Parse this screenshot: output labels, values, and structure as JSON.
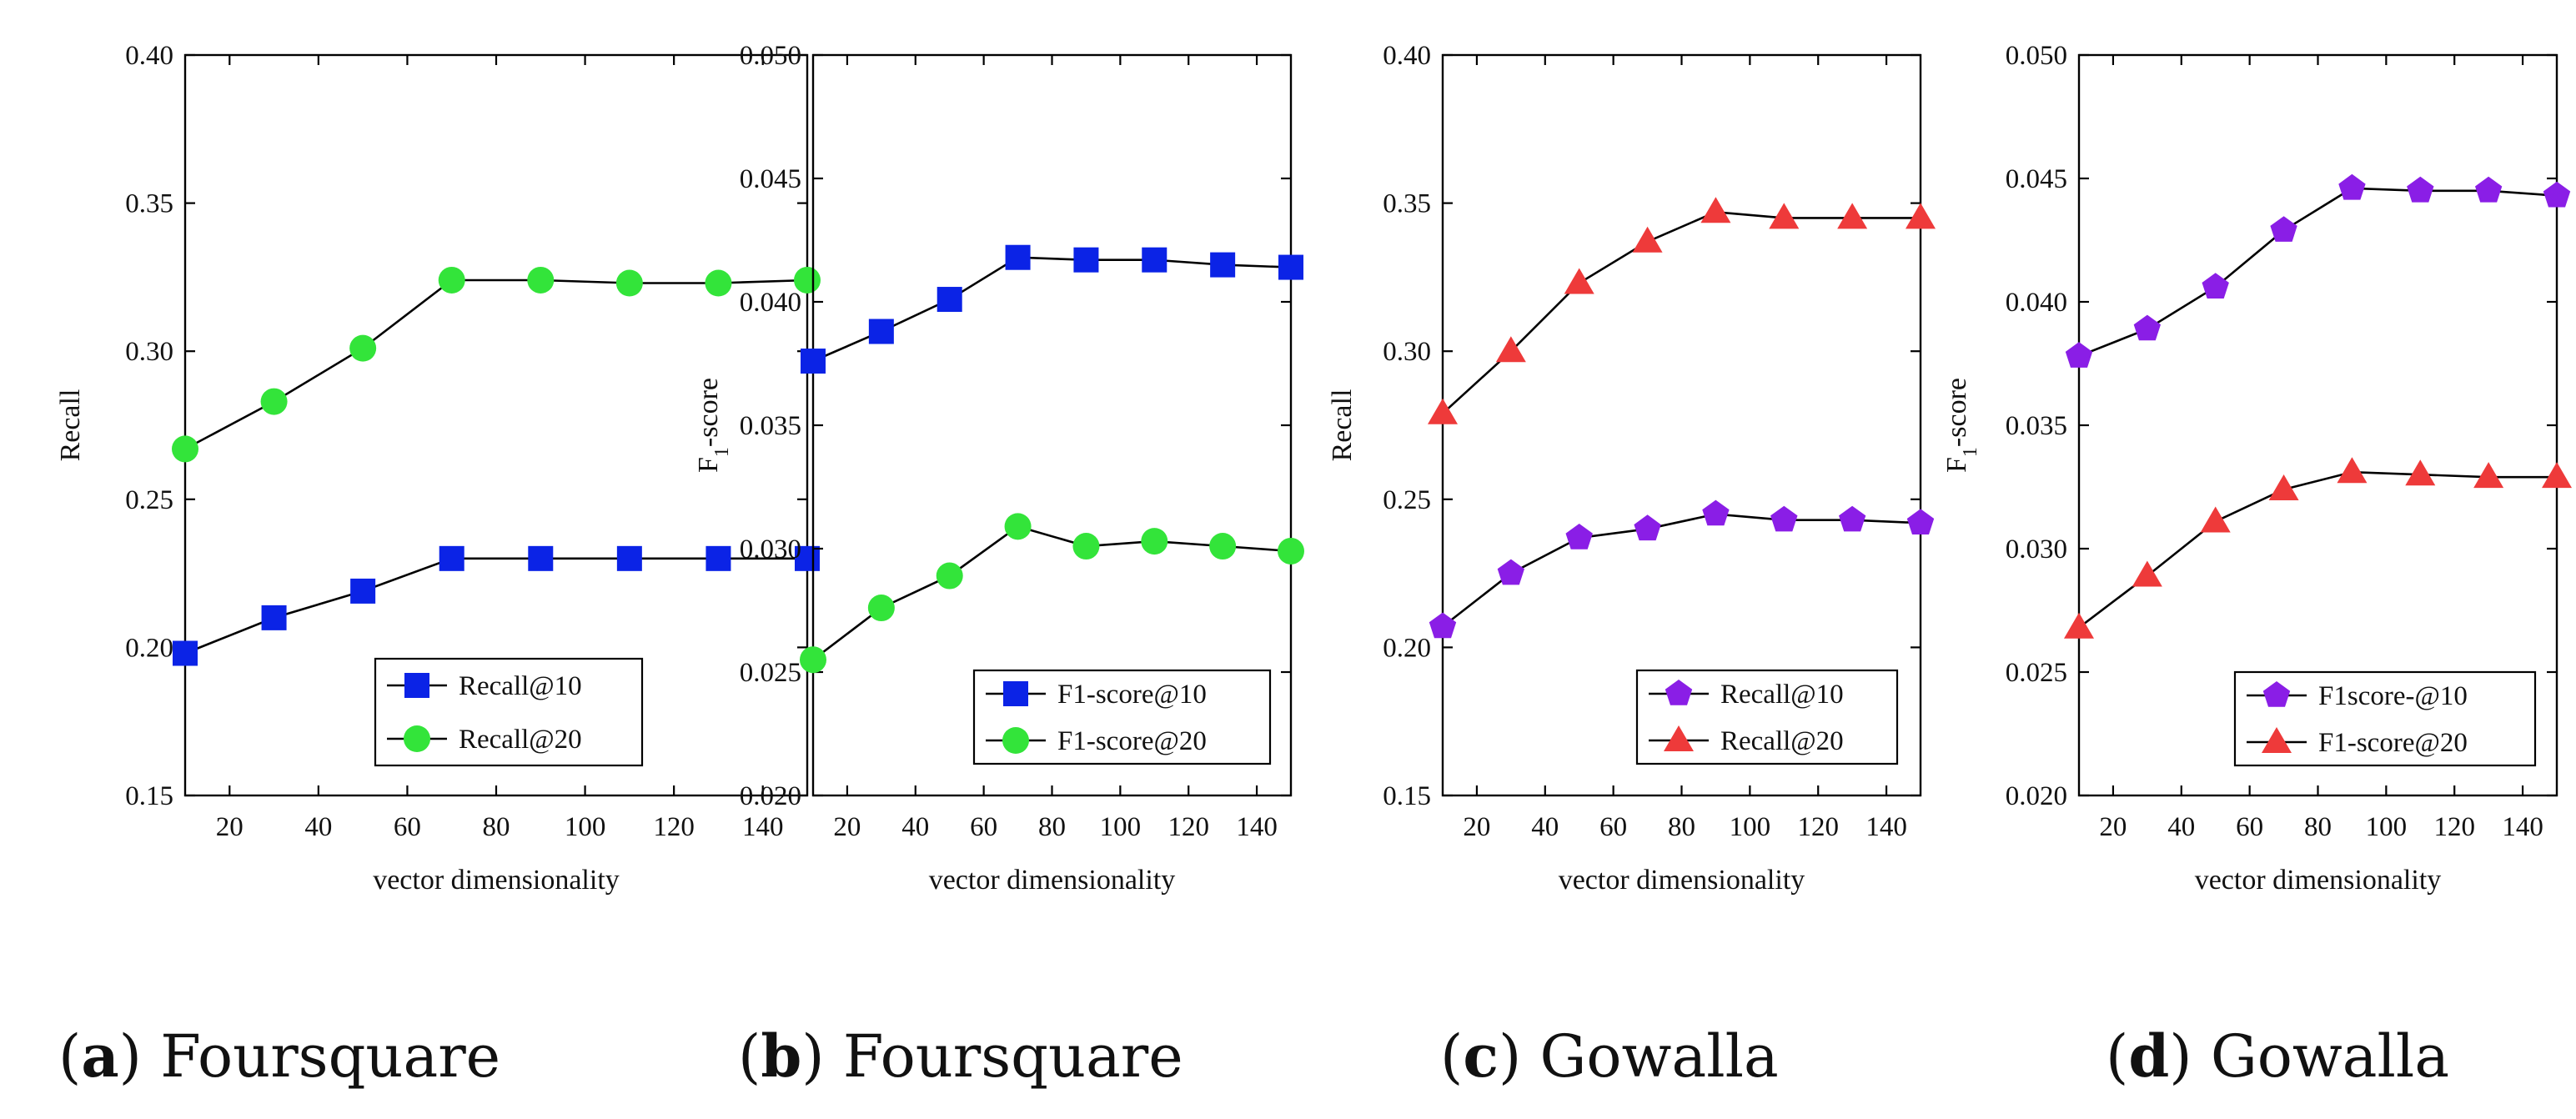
{
  "figure": {
    "captions": [
      {
        "letter": "a",
        "text": "Foursquare"
      },
      {
        "letter": "b",
        "text": "Foursquare"
      },
      {
        "letter": "c",
        "text": "Gowalla"
      },
      {
        "letter": "d",
        "text": "Gowalla"
      }
    ]
  },
  "chart_data": [
    {
      "type": "line",
      "panel": "a",
      "xlabel": "vector dimensionality",
      "ylabel": "Recall",
      "ylabel_sub": "",
      "xlim": [
        10,
        150
      ],
      "ylim": [
        0.15,
        0.4
      ],
      "xticks": [
        20,
        40,
        60,
        80,
        100,
        120,
        140
      ],
      "yticks": [
        "0.15",
        "0.20",
        "0.25",
        "0.30",
        "0.35",
        "0.40"
      ],
      "legend_position": "bottom-right",
      "x": [
        10,
        30,
        50,
        70,
        90,
        110,
        130,
        150
      ],
      "series": [
        {
          "name": "Recall@10",
          "marker": "square",
          "color": "#0b23e6",
          "values": [
            0.198,
            0.21,
            0.219,
            0.23,
            0.23,
            0.23,
            0.23,
            0.23
          ]
        },
        {
          "name": "Recall@20",
          "marker": "circle",
          "color": "#33e43a",
          "values": [
            0.267,
            0.283,
            0.301,
            0.324,
            0.324,
            0.323,
            0.323,
            0.324
          ]
        }
      ]
    },
    {
      "type": "line",
      "panel": "b",
      "xlabel": "vector dimensionality",
      "ylabel": "F",
      "ylabel_sub": "1",
      "ylabel_rest": "-score",
      "xlim": [
        10,
        150
      ],
      "ylim": [
        0.02,
        0.05
      ],
      "xticks": [
        20,
        40,
        60,
        80,
        100,
        120,
        140
      ],
      "yticks": [
        "0.020",
        "0.025",
        "0.030",
        "0.035",
        "0.040",
        "0.045",
        "0.050"
      ],
      "legend_position": "bottom-right",
      "x": [
        10,
        30,
        50,
        70,
        90,
        110,
        130,
        150
      ],
      "series": [
        {
          "name": "F1-score@10",
          "marker": "square",
          "color": "#0b23e6",
          "values": [
            0.0376,
            0.0388,
            0.0401,
            0.0418,
            0.0417,
            0.0417,
            0.0415,
            0.0414
          ]
        },
        {
          "name": "F1-score@20",
          "marker": "circle",
          "color": "#33e43a",
          "values": [
            0.0255,
            0.0276,
            0.0289,
            0.0309,
            0.0301,
            0.0303,
            0.0301,
            0.0299
          ]
        }
      ]
    },
    {
      "type": "line",
      "panel": "c",
      "xlabel": "vector dimensionality",
      "ylabel": "Recall",
      "ylabel_sub": "",
      "xlim": [
        10,
        150
      ],
      "ylim": [
        0.15,
        0.4
      ],
      "xticks": [
        20,
        40,
        60,
        80,
        100,
        120,
        140
      ],
      "yticks": [
        "0.15",
        "0.20",
        "0.25",
        "0.30",
        "0.35",
        "0.40"
      ],
      "legend_position": "bottom-right",
      "x": [
        10,
        30,
        50,
        70,
        90,
        110,
        130,
        150
      ],
      "series": [
        {
          "name": "Recall@10",
          "marker": "pentagon",
          "color": "#8a1ee6",
          "values": [
            0.207,
            0.225,
            0.237,
            0.24,
            0.245,
            0.243,
            0.243,
            0.242
          ]
        },
        {
          "name": "Recall@20",
          "marker": "triangle",
          "color": "#ee3a3a",
          "values": [
            0.279,
            0.3,
            0.323,
            0.337,
            0.347,
            0.345,
            0.345,
            0.345
          ]
        }
      ]
    },
    {
      "type": "line",
      "panel": "d",
      "xlabel": "vector dimensionality",
      "ylabel": "F",
      "ylabel_sub": "1",
      "ylabel_rest": "-score",
      "xlim": [
        10,
        150
      ],
      "ylim": [
        0.02,
        0.05
      ],
      "xticks": [
        20,
        40,
        60,
        80,
        100,
        120,
        140
      ],
      "yticks": [
        "0.020",
        "0.025",
        "0.030",
        "0.035",
        "0.040",
        "0.045",
        "0.050"
      ],
      "legend_position": "bottom-right",
      "x": [
        10,
        30,
        50,
        70,
        90,
        110,
        130,
        150
      ],
      "series": [
        {
          "name": "F1score-@10",
          "marker": "pentagon",
          "color": "#8a1ee6",
          "values": [
            0.0378,
            0.0389,
            0.0406,
            0.0429,
            0.0446,
            0.0445,
            0.0445,
            0.0443
          ]
        },
        {
          "name": "F1-score@20",
          "marker": "triangle",
          "color": "#ee3a3a",
          "values": [
            0.0268,
            0.0289,
            0.0311,
            0.0324,
            0.0331,
            0.033,
            0.0329,
            0.0329
          ]
        }
      ]
    }
  ]
}
